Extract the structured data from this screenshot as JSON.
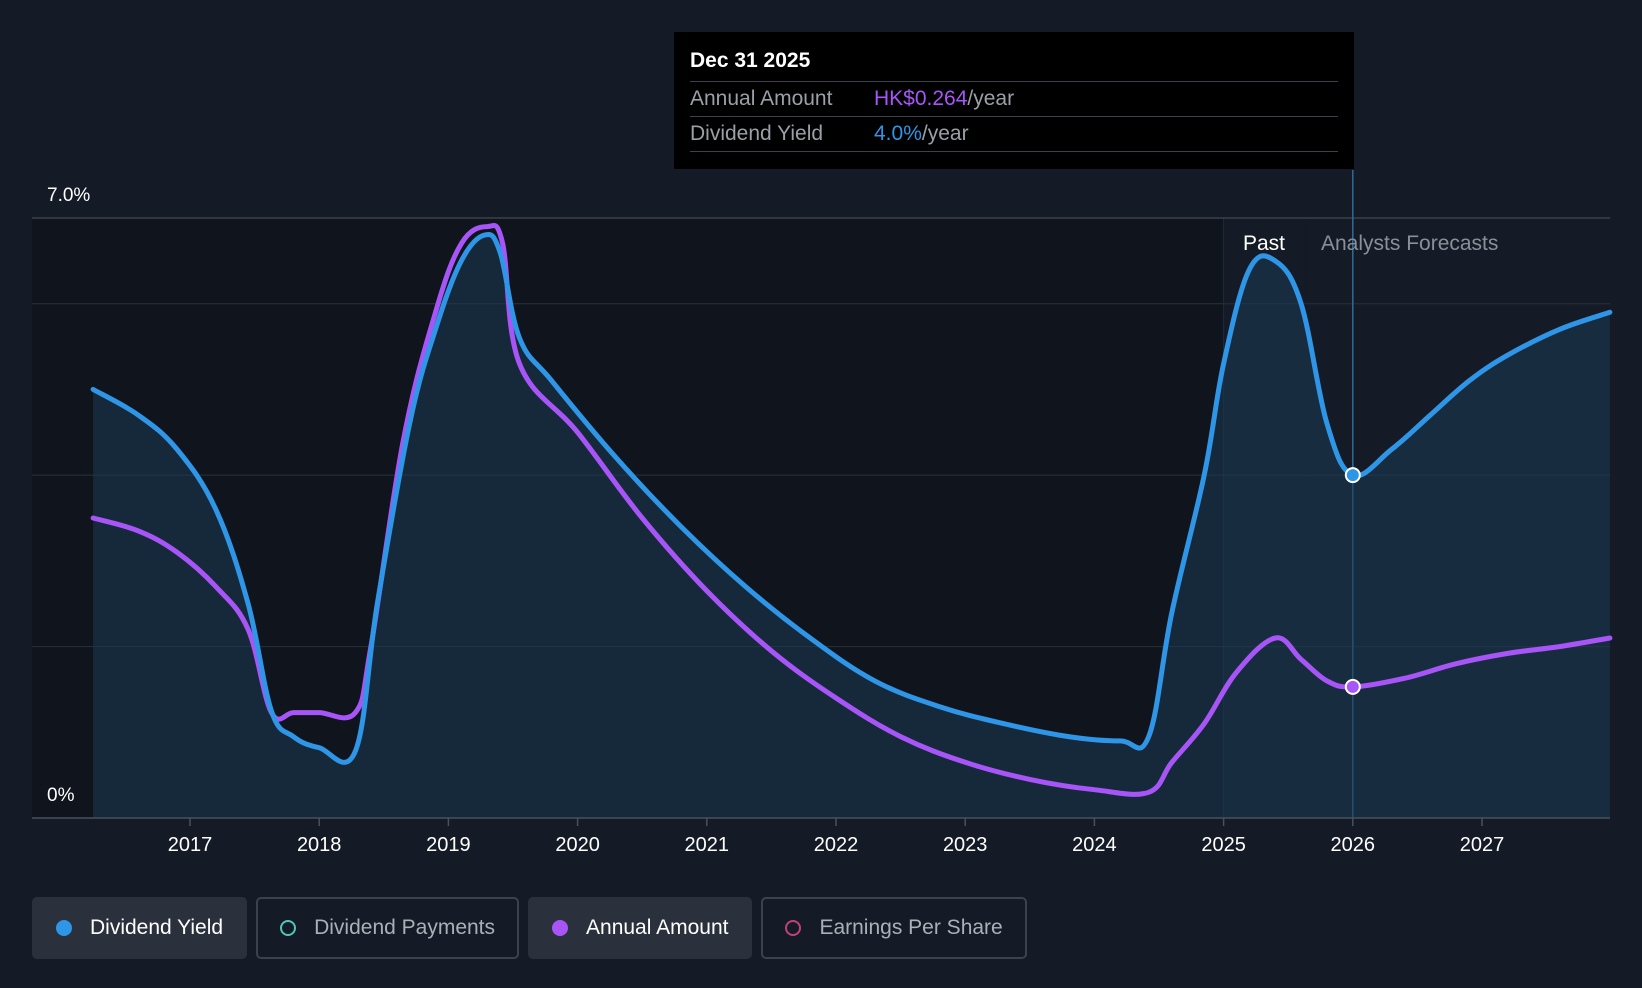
{
  "tooltip": {
    "date": "Dec 31 2025",
    "rows": [
      {
        "label": "Annual Amount",
        "value": "HK$0.264",
        "unit": "/year"
      },
      {
        "label": "Dividend Yield",
        "value": "4.0%",
        "unit": "/year"
      }
    ]
  },
  "regions": {
    "past": "Past",
    "forecast": "Analysts Forecasts"
  },
  "legend": [
    {
      "label": "Dividend Yield",
      "color": "#2f95e6",
      "active": true
    },
    {
      "label": "Dividend Payments",
      "color": "#4fc6b8",
      "active": false
    },
    {
      "label": "Annual Amount",
      "color": "#a855f7",
      "active": true
    },
    {
      "label": "Earnings Per Share",
      "color": "#c2407a",
      "active": false
    }
  ],
  "chart_data": {
    "type": "area",
    "y_tick_labels": [
      "7.0%",
      "0%"
    ],
    "ylim": [
      0,
      7.0
    ],
    "xlim": [
      2016.25,
      2027.99
    ],
    "x_ticks": [
      2017,
      2018,
      2019,
      2020,
      2021,
      2022,
      2023,
      2024,
      2025,
      2026,
      2027
    ],
    "grid": true,
    "past_end": 2025.64,
    "selected_x": 2026.0,
    "series": [
      {
        "name": "Dividend Yield",
        "color": "#2f95e6",
        "points": [
          [
            2016.25,
            5.0
          ],
          [
            2016.6,
            4.7
          ],
          [
            2016.9,
            4.3
          ],
          [
            2017.2,
            3.6
          ],
          [
            2017.45,
            2.5
          ],
          [
            2017.63,
            1.25
          ],
          [
            2017.8,
            0.95
          ],
          [
            2018.0,
            0.82
          ],
          [
            2018.28,
            0.78
          ],
          [
            2018.45,
            2.5
          ],
          [
            2018.7,
            4.6
          ],
          [
            2018.9,
            5.7
          ],
          [
            2019.1,
            6.5
          ],
          [
            2019.28,
            6.8
          ],
          [
            2019.4,
            6.6
          ],
          [
            2019.55,
            5.6
          ],
          [
            2019.8,
            5.1
          ],
          [
            2020.3,
            4.2
          ],
          [
            2020.8,
            3.4
          ],
          [
            2021.3,
            2.7
          ],
          [
            2021.8,
            2.1
          ],
          [
            2022.3,
            1.6
          ],
          [
            2022.8,
            1.3
          ],
          [
            2023.3,
            1.1
          ],
          [
            2023.8,
            0.95
          ],
          [
            2024.2,
            0.9
          ],
          [
            2024.42,
            0.95
          ],
          [
            2024.6,
            2.4
          ],
          [
            2024.85,
            4.0
          ],
          [
            2025.0,
            5.3
          ],
          [
            2025.2,
            6.4
          ],
          [
            2025.4,
            6.5
          ],
          [
            2025.6,
            6.0
          ],
          [
            2025.8,
            4.6
          ],
          [
            2026.0,
            4.0
          ],
          [
            2026.3,
            4.3
          ],
          [
            2026.6,
            4.7
          ],
          [
            2026.9,
            5.1
          ],
          [
            2027.2,
            5.4
          ],
          [
            2027.6,
            5.7
          ],
          [
            2027.99,
            5.9
          ]
        ]
      },
      {
        "name": "Annual Amount",
        "color": "#a855f7",
        "points": [
          [
            2016.25,
            3.5
          ],
          [
            2016.6,
            3.35
          ],
          [
            2016.9,
            3.1
          ],
          [
            2017.2,
            2.7
          ],
          [
            2017.45,
            2.2
          ],
          [
            2017.63,
            1.23
          ],
          [
            2017.8,
            1.23
          ],
          [
            2018.0,
            1.23
          ],
          [
            2018.28,
            1.23
          ],
          [
            2018.4,
            2.0
          ],
          [
            2018.65,
            4.4
          ],
          [
            2018.9,
            5.9
          ],
          [
            2019.1,
            6.7
          ],
          [
            2019.3,
            6.9
          ],
          [
            2019.42,
            6.7
          ],
          [
            2019.55,
            5.3
          ],
          [
            2020.0,
            4.5
          ],
          [
            2020.5,
            3.5
          ],
          [
            2021.0,
            2.65
          ],
          [
            2021.5,
            1.95
          ],
          [
            2022.0,
            1.4
          ],
          [
            2022.5,
            0.95
          ],
          [
            2023.0,
            0.65
          ],
          [
            2023.5,
            0.45
          ],
          [
            2024.0,
            0.33
          ],
          [
            2024.42,
            0.3
          ],
          [
            2024.6,
            0.65
          ],
          [
            2024.85,
            1.1
          ],
          [
            2025.1,
            1.7
          ],
          [
            2025.4,
            2.1
          ],
          [
            2025.6,
            1.85
          ],
          [
            2025.8,
            1.6
          ],
          [
            2026.0,
            1.53
          ],
          [
            2026.4,
            1.63
          ],
          [
            2026.8,
            1.8
          ],
          [
            2027.2,
            1.92
          ],
          [
            2027.6,
            2.0
          ],
          [
            2027.99,
            2.1
          ]
        ]
      }
    ]
  }
}
